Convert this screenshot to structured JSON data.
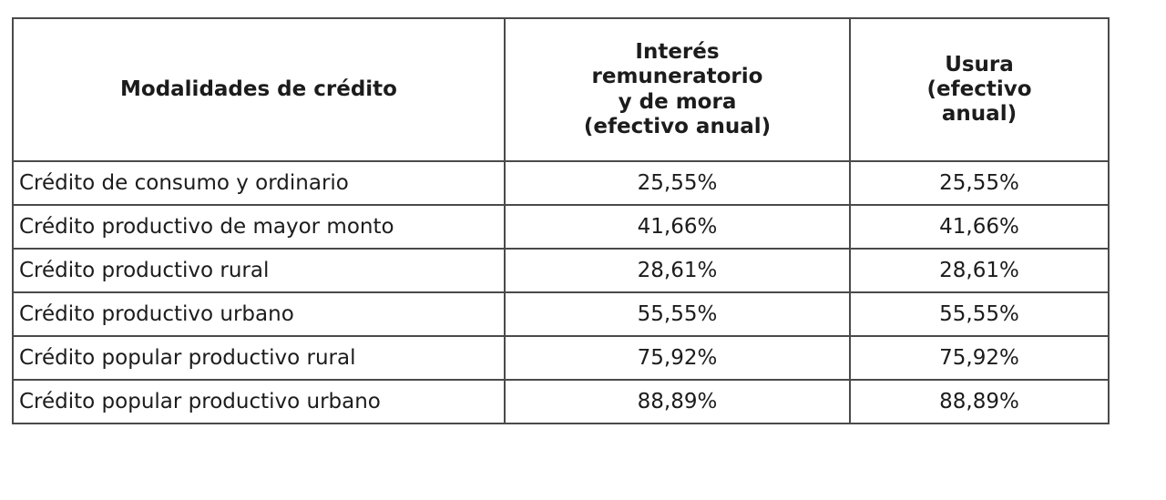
{
  "table": {
    "columns": {
      "modalidades": "Modalidades de crédito",
      "interes": "Interés\nremuneratorio\ny de mora\n(efectivo anual)",
      "usura": "Usura\n(efectivo\nanual)"
    },
    "rows": [
      {
        "modalidad": "Crédito de consumo y ordinario",
        "interes": "25,55%",
        "usura": "25,55%"
      },
      {
        "modalidad": "Crédito productivo de mayor monto",
        "interes": "41,66%",
        "usura": "41,66%"
      },
      {
        "modalidad": "Crédito productivo rural",
        "interes": "28,61%",
        "usura": "28,61%"
      },
      {
        "modalidad": "Crédito productivo urbano",
        "interes": "55,55%",
        "usura": "55,55%"
      },
      {
        "modalidad": "Crédito popular productivo rural",
        "interes": "75,92%",
        "usura": "75,92%"
      },
      {
        "modalidad": "Crédito popular productivo urbano",
        "interes": "88,89%",
        "usura": "88,89%"
      }
    ],
    "colors": {
      "border": "#4a4a4a",
      "text": "#1c1c1c",
      "background": "#ffffff"
    }
  }
}
